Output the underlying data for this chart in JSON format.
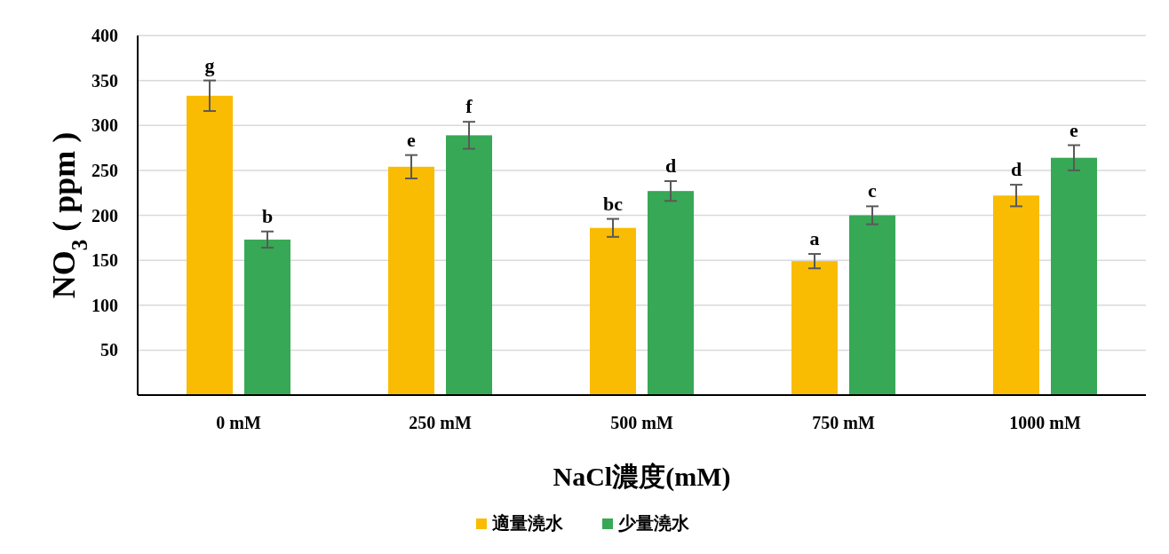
{
  "chart_data": {
    "type": "bar",
    "xlabel": "NaCl濃度(mM)",
    "ylabel": "NO$_{3}$ ( ppm )",
    "categories": [
      "0 mM",
      "250 mM",
      "500 mM",
      "750 mM",
      "1000 mM"
    ],
    "series": [
      {
        "name": "適量澆水",
        "color": "#f9bc02",
        "values": [
          333,
          254,
          186,
          149,
          222
        ],
        "errors": [
          17,
          13,
          10,
          8,
          12
        ],
        "value_labels": [
          "g",
          "e",
          "bc",
          "a",
          "d"
        ]
      },
      {
        "name": "少量澆水",
        "color": "#37a855",
        "values": [
          173,
          289,
          227,
          200,
          264
        ],
        "errors": [
          9,
          15,
          11,
          10,
          14
        ],
        "value_labels": [
          "b",
          "f",
          "d",
          "c",
          "e"
        ]
      }
    ],
    "ylim": [
      0,
      400
    ],
    "yticks": [
      50,
      100,
      150,
      200,
      250,
      300,
      350,
      400
    ],
    "grid": "y",
    "legend": "bottom"
  }
}
